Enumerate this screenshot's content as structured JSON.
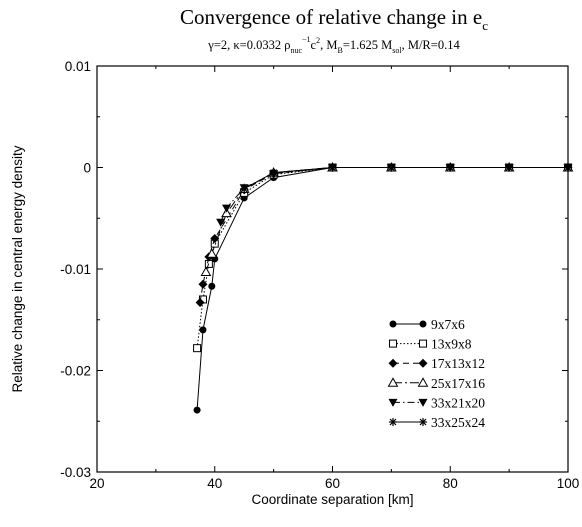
{
  "chart_data": {
    "type": "line",
    "title": {
      "main": "Convergence of relative change in e",
      "sub": "c"
    },
    "subtitle": {
      "p1": "γ=2, κ=0.0332 ρ",
      "p1_sub": "nuc",
      "p1_sup": "−1",
      "p2": "c",
      "p2_sup": "2",
      "p3": ", M",
      "p3_sub": "B",
      "p4": "=1.625 M",
      "p4_sub": "sol",
      "p5": ", M/R=0.14"
    },
    "xlabel": "Coordinate separation [km]",
    "ylabel": "Relative change in central energy density",
    "xlim": [
      20,
      100
    ],
    "ylim": [
      -0.03,
      0.01
    ],
    "xticks": [
      20,
      40,
      60,
      80,
      100
    ],
    "xtick_labels": [
      "20",
      "40",
      "60",
      "80",
      "100"
    ],
    "yticks": [
      -0.03,
      -0.02,
      -0.01,
      0,
      0.01
    ],
    "ytick_labels": [
      "-0.03",
      "-0.02",
      "-0.01",
      "0",
      "0.01"
    ],
    "grid": false,
    "legend_position": "lower-right",
    "series": [
      {
        "name": "9x7x6",
        "marker": "circle-filled",
        "dash": "solid",
        "x": [
          37,
          38,
          39.5,
          40,
          45,
          50,
          60,
          70,
          80,
          90,
          100
        ],
        "y": [
          -0.0239,
          -0.016,
          -0.0117,
          -0.009,
          -0.003,
          -0.001,
          0,
          0,
          0,
          0,
          0
        ]
      },
      {
        "name": "13x9x8",
        "marker": "square-open",
        "dash": "dotted",
        "x": [
          37,
          38,
          39,
          40,
          45,
          50,
          60,
          70,
          80,
          90,
          100
        ],
        "y": [
          -0.0178,
          -0.013,
          -0.0095,
          -0.0075,
          -0.0025,
          -0.0007,
          0,
          0,
          0,
          0,
          0
        ]
      },
      {
        "name": "17x13x12",
        "marker": "diamond-filled",
        "dash": "dashed",
        "x": [
          37.5,
          38,
          39,
          40,
          45,
          50,
          60,
          70,
          80,
          90,
          100
        ],
        "y": [
          -0.0133,
          -0.0115,
          -0.0088,
          -0.007,
          -0.0022,
          -0.0006,
          0,
          0,
          0,
          0,
          0
        ]
      },
      {
        "name": "25x17x16",
        "marker": "triangle-up-open",
        "dash": "longdash",
        "x": [
          38.5,
          39.5,
          42,
          45,
          50,
          60,
          70,
          80,
          90,
          100
        ],
        "y": [
          -0.0103,
          -0.0085,
          -0.0045,
          -0.0021,
          -0.0005,
          0,
          0,
          0,
          0,
          0
        ]
      },
      {
        "name": "33x21x20",
        "marker": "triangle-down-filled",
        "dash": "dashdot",
        "x": [
          41,
          42,
          45,
          50,
          60,
          70,
          80,
          90,
          100
        ],
        "y": [
          -0.0054,
          -0.004,
          -0.002,
          -0.0006,
          0,
          0,
          0,
          0,
          0
        ]
      },
      {
        "name": "33x25x24",
        "marker": "star",
        "dash": "solid",
        "x": [
          45,
          50,
          60,
          70,
          80,
          90,
          100
        ],
        "y": [
          -0.0021,
          -0.0005,
          0,
          0,
          0,
          0,
          0
        ]
      }
    ]
  }
}
